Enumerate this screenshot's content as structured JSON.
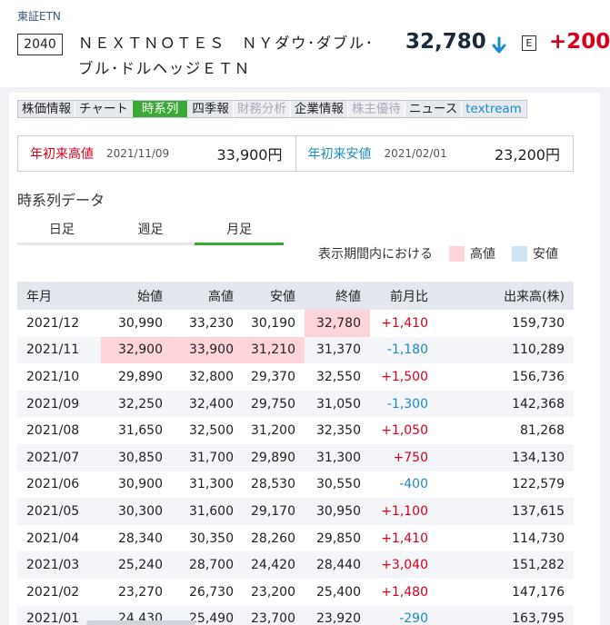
{
  "header": {
    "market": "東証ETN",
    "code": "2040",
    "name": "ＮＥＸＴＮＯＴＥＳ　ＮＹダウ･ダブル･ブル･ドルヘッジＥＴＮ",
    "price": "32,780",
    "badge": "E",
    "change": "+200"
  },
  "tabs": [
    {
      "label": "株価情報",
      "state": "normal"
    },
    {
      "label": "チャート",
      "state": "normal"
    },
    {
      "label": "時系列",
      "state": "active"
    },
    {
      "label": "四季報",
      "state": "normal"
    },
    {
      "label": "財務分析",
      "state": "disabled"
    },
    {
      "label": "企業情報",
      "state": "normal"
    },
    {
      "label": "株主優待",
      "state": "disabled"
    },
    {
      "label": "ニュース",
      "state": "normal"
    },
    {
      "label": "textream",
      "state": "link"
    }
  ],
  "range": {
    "high_label": "年初来高値",
    "high_date": "2021/11/09",
    "high_value": "33,900円",
    "low_label": "年初来安値",
    "low_date": "2021/02/01",
    "low_value": "23,200円"
  },
  "section_title": "時系列データ",
  "period_tabs": [
    {
      "label": "日足",
      "active": false
    },
    {
      "label": "週足",
      "active": false
    },
    {
      "label": "月足",
      "active": true
    }
  ],
  "legend": {
    "text": "表示期間内における",
    "high": "高値",
    "low": "安値"
  },
  "colors": {
    "accent": "#3aa834",
    "up": "#d6001c",
    "down": "#1a8cc8",
    "high_bg": "#fcd4da",
    "low_bg": "#cfe4f4"
  },
  "table": {
    "columns": [
      "年月",
      "始値",
      "高値",
      "安値",
      "終値",
      "前月比",
      "出来高(株)"
    ],
    "rows": [
      {
        "cells": [
          "2021/12",
          "30,990",
          "33,230",
          "30,190",
          "32,780",
          "+1,410",
          "159,730"
        ],
        "hi": [
          4
        ],
        "lo": []
      },
      {
        "cells": [
          "2021/11",
          "32,900",
          "33,900",
          "31,210",
          "31,370",
          "-1,180",
          "110,289"
        ],
        "hi": [
          1,
          2,
          3
        ],
        "lo": []
      },
      {
        "cells": [
          "2021/10",
          "29,890",
          "32,800",
          "29,370",
          "32,550",
          "+1,500",
          "156,736"
        ],
        "hi": [],
        "lo": []
      },
      {
        "cells": [
          "2021/09",
          "32,250",
          "32,400",
          "29,750",
          "31,050",
          "-1,300",
          "142,368"
        ],
        "hi": [],
        "lo": []
      },
      {
        "cells": [
          "2021/08",
          "31,650",
          "32,500",
          "31,200",
          "32,350",
          "+1,050",
          "81,268"
        ],
        "hi": [],
        "lo": []
      },
      {
        "cells": [
          "2021/07",
          "30,850",
          "31,700",
          "29,890",
          "31,300",
          "+750",
          "134,130"
        ],
        "hi": [],
        "lo": []
      },
      {
        "cells": [
          "2021/06",
          "30,900",
          "31,300",
          "28,530",
          "30,550",
          "-400",
          "122,579"
        ],
        "hi": [],
        "lo": []
      },
      {
        "cells": [
          "2021/05",
          "30,300",
          "31,600",
          "29,170",
          "30,950",
          "+1,100",
          "137,615"
        ],
        "hi": [],
        "lo": []
      },
      {
        "cells": [
          "2021/04",
          "28,340",
          "30,350",
          "28,260",
          "29,850",
          "+1,410",
          "114,730"
        ],
        "hi": [],
        "lo": []
      },
      {
        "cells": [
          "2021/03",
          "25,240",
          "28,700",
          "24,420",
          "28,440",
          "+3,040",
          "151,282"
        ],
        "hi": [],
        "lo": []
      },
      {
        "cells": [
          "2021/02",
          "23,270",
          "26,730",
          "23,200",
          "25,400",
          "+1,480",
          "147,176"
        ],
        "hi": [],
        "lo": []
      },
      {
        "cells": [
          "2021/01",
          "24,430",
          "25,490",
          "23,700",
          "23,920",
          "-290",
          "163,795"
        ],
        "hi": [],
        "lo": []
      }
    ]
  }
}
